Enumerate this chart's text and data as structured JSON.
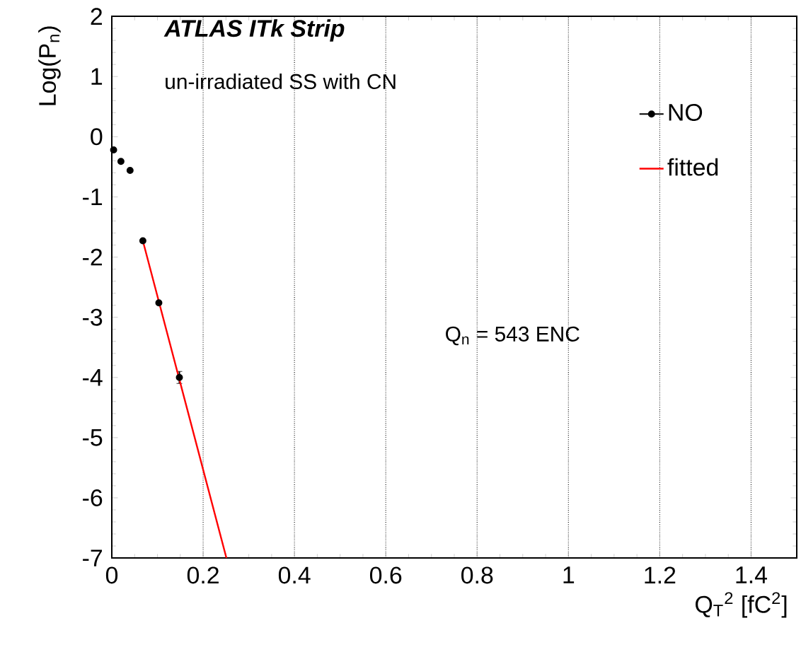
{
  "chart_data": {
    "type": "scatter",
    "title": "ATLAS ITk Strip",
    "subtitle": "un-irradiated SS with CN",
    "xlabel": "Q$_{T}$$^{2}$ [fC$^{2}$]",
    "ylabel": "Log(P$_{n}$)",
    "annotations": [
      "Q$_{n}$ = 543 ENC"
    ],
    "xlim": [
      0,
      1.5
    ],
    "ylim": [
      -7,
      2
    ],
    "xticks": [
      0,
      0.2,
      0.4,
      0.6,
      0.8,
      1,
      1.2,
      1.4
    ],
    "yticks": [
      -7,
      -6,
      -5,
      -4,
      -3,
      -2,
      -1,
      0,
      1,
      2
    ],
    "grid": "x",
    "legend": "top right",
    "series": [
      {
        "name": "NO",
        "marker": "circle",
        "color": "#000000",
        "x": [
          0.004,
          0.02,
          0.04,
          0.068,
          0.103,
          0.148
        ],
        "values": [
          -0.22,
          -0.41,
          -0.56,
          -1.73,
          -2.76,
          -4.0
        ],
        "errors": [
          null,
          null,
          null,
          null,
          null,
          0.1
        ]
      },
      {
        "name": "fitted",
        "type": "line",
        "color": "#ff0000",
        "x": [
          0.068,
          0.251
        ],
        "values": [
          -1.73,
          -7.0
        ]
      }
    ]
  }
}
